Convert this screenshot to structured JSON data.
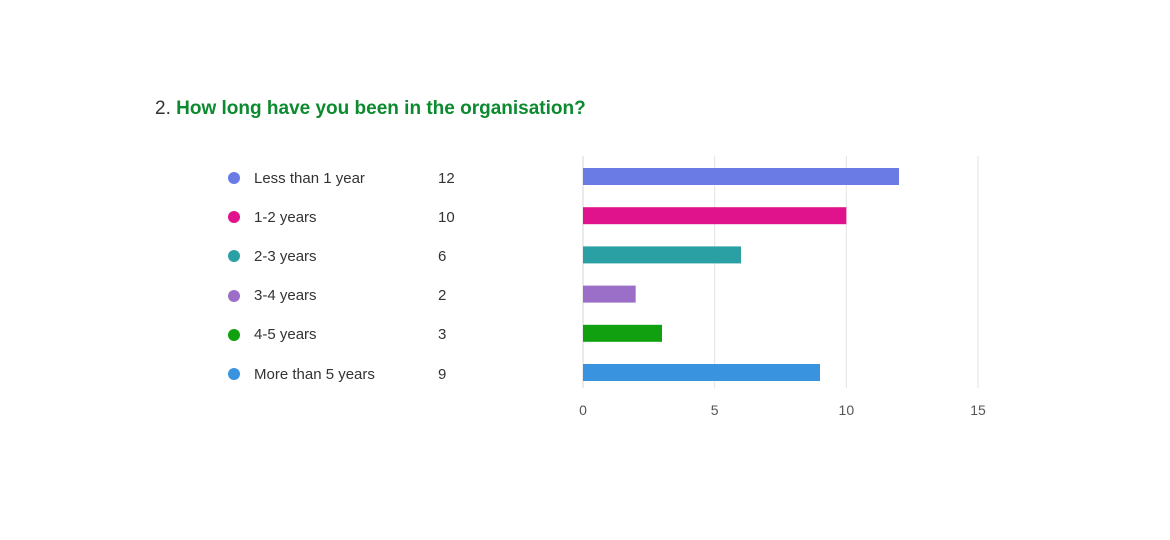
{
  "question": {
    "number": "2.",
    "text": "How long have you been in the organisation?"
  },
  "chart_data": {
    "type": "bar",
    "orientation": "horizontal",
    "categories": [
      "Less than 1 year",
      "1-2 years",
      "2-3 years",
      "3-4 years",
      "4-5 years",
      "More than 5 years"
    ],
    "values": [
      12,
      10,
      6,
      2,
      3,
      9
    ],
    "colors": [
      "#6b7be6",
      "#e0138c",
      "#2aa0a4",
      "#9b6fc7",
      "#10a010",
      "#3a93de"
    ],
    "xticks": [
      0,
      5,
      10,
      15
    ],
    "xlim": [
      0,
      15
    ],
    "grid": true,
    "legend_placement": "left"
  }
}
